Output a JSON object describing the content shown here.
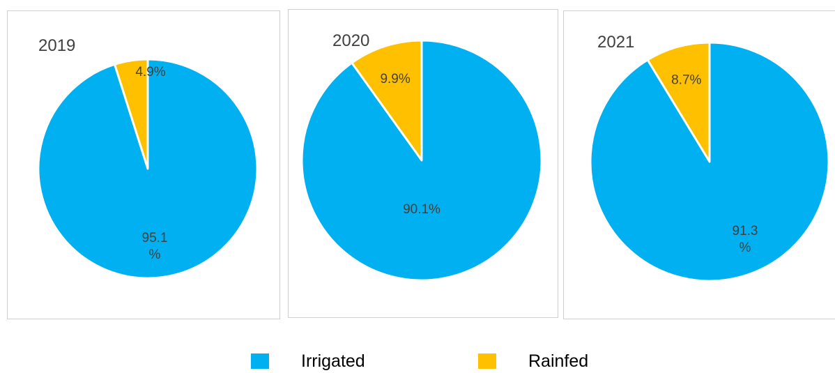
{
  "colors": {
    "irrigated": "#00B0F0",
    "rainfed": "#FFC000",
    "label": "#404040"
  },
  "legend": [
    {
      "label": "Irrigated",
      "color": "#00B0F0"
    },
    {
      "label": "Rainfed",
      "color": "#FFC000"
    }
  ],
  "chart_data": [
    {
      "type": "pie",
      "title": "2019",
      "slices": [
        {
          "name": "Rainfed",
          "value": 4.9,
          "label_lines": [
            "4.9%"
          ]
        },
        {
          "name": "Irrigated",
          "value": 95.1,
          "label_lines": [
            "95.1",
            "%"
          ]
        }
      ]
    },
    {
      "type": "pie",
      "title": "2020",
      "slices": [
        {
          "name": "Rainfed",
          "value": 9.9,
          "label_lines": [
            "9.9%"
          ]
        },
        {
          "name": "Irrigated",
          "value": 90.1,
          "label_lines": [
            "90.1%"
          ]
        }
      ]
    },
    {
      "type": "pie",
      "title": "2021",
      "slices": [
        {
          "name": "Rainfed",
          "value": 8.7,
          "label_lines": [
            "8.7%"
          ]
        },
        {
          "name": "Irrigated",
          "value": 91.3,
          "label_lines": [
            "91.3",
            "%"
          ]
        }
      ]
    }
  ]
}
